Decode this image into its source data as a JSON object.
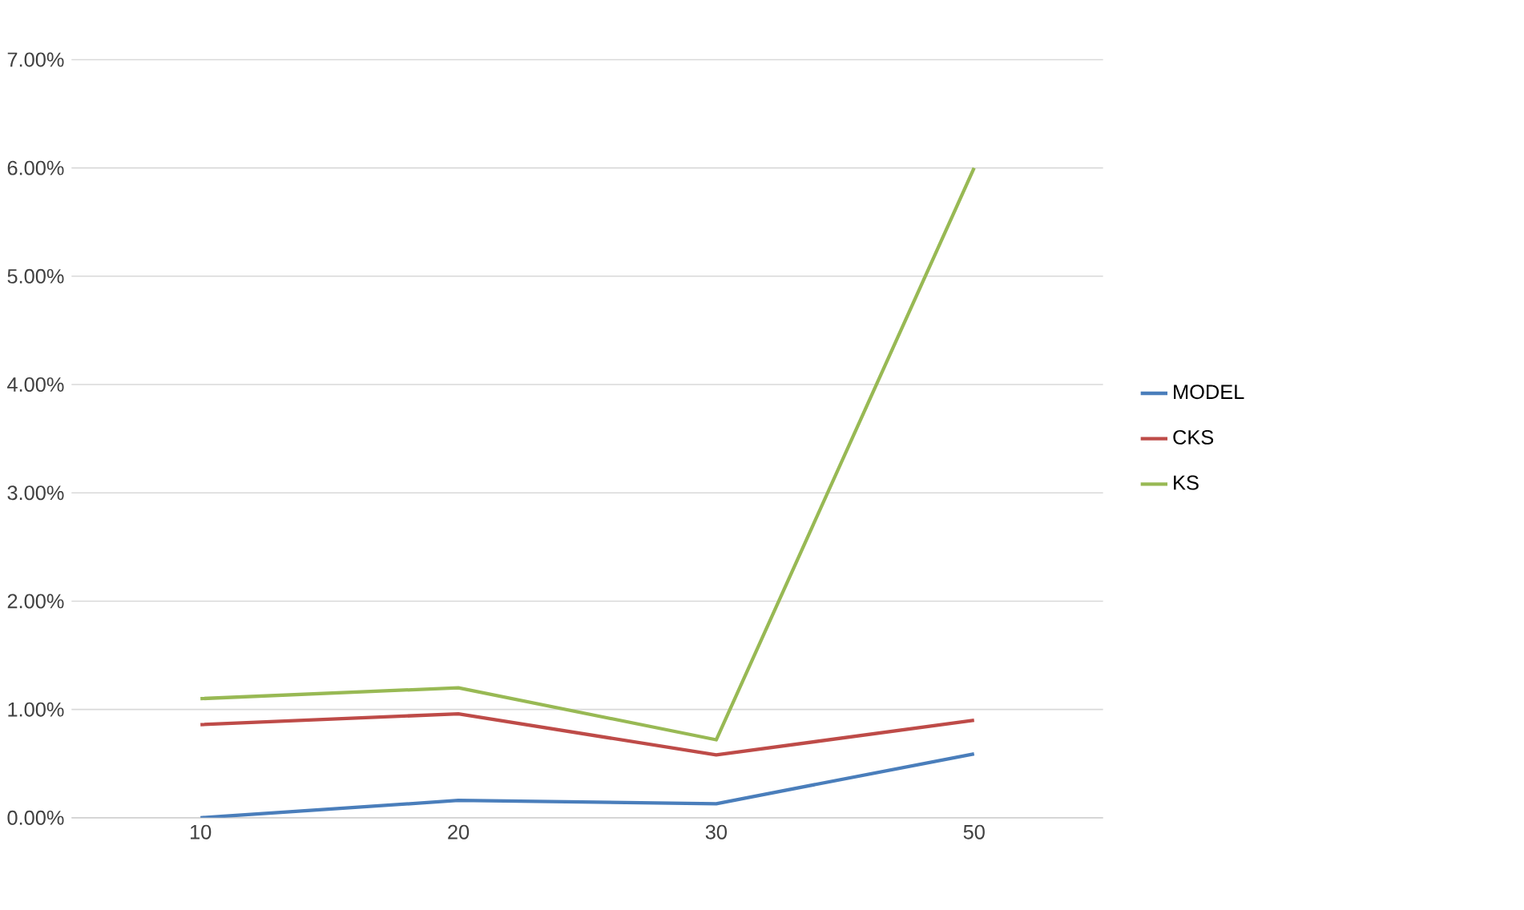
{
  "chart_data": {
    "type": "line",
    "categories": [
      "10",
      "20",
      "30",
      "50"
    ],
    "series": [
      {
        "name": "MODEL",
        "color": "#4a7ebb",
        "values": [
          0.0,
          0.16,
          0.13,
          0.59
        ]
      },
      {
        "name": "CKS",
        "color": "#be4b48",
        "values": [
          0.86,
          0.96,
          0.58,
          0.9
        ]
      },
      {
        "name": "KS",
        "color": "#98b954",
        "values": [
          1.1,
          1.2,
          0.72,
          6.0
        ]
      }
    ],
    "ylim": [
      0,
      7
    ],
    "yticks": [
      {
        "value": 0,
        "label": "0.00%"
      },
      {
        "value": 1,
        "label": "1.00%"
      },
      {
        "value": 2,
        "label": "2.00%"
      },
      {
        "value": 3,
        "label": "3.00%"
      },
      {
        "value": 4,
        "label": "4.00%"
      },
      {
        "value": 5,
        "label": "5.00%"
      },
      {
        "value": 6,
        "label": "6.00%"
      },
      {
        "value": 7,
        "label": "7.00%"
      }
    ],
    "grid": "y",
    "legend": "right",
    "marker": "none",
    "line_style": "solid"
  }
}
